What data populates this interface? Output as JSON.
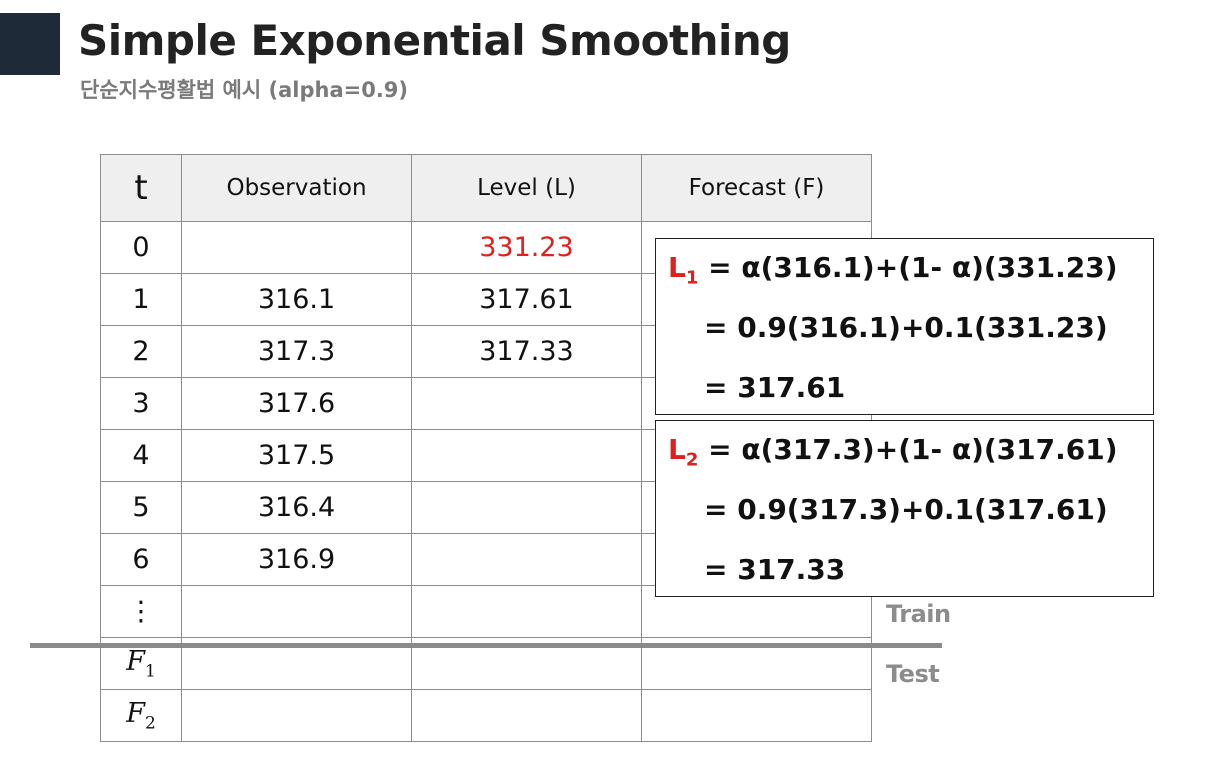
{
  "header": {
    "title": "Simple Exponential Smoothing",
    "subtitle": "단순지수평활법 예시 (alpha=0.9)"
  },
  "table": {
    "columns": [
      "t",
      "Observation",
      "Level (L)",
      "Forecast (F)"
    ],
    "rows": [
      {
        "t": "0",
        "observation": "",
        "level": "331.23",
        "forecast": ""
      },
      {
        "t": "1",
        "observation": "316.1",
        "level": "317.61",
        "forecast": ""
      },
      {
        "t": "2",
        "observation": "317.3",
        "level": "317.33",
        "forecast": ""
      },
      {
        "t": "3",
        "observation": "317.6",
        "level": "",
        "forecast": ""
      },
      {
        "t": "4",
        "observation": "317.5",
        "level": "",
        "forecast": ""
      },
      {
        "t": "5",
        "observation": "316.4",
        "level": "",
        "forecast": ""
      },
      {
        "t": "6",
        "observation": "316.9",
        "level": "",
        "forecast": ""
      },
      {
        "t": "⋮",
        "observation": "",
        "level": "",
        "forecast": ""
      }
    ],
    "test_rows": [
      {
        "symbol": "F",
        "sub": "1"
      },
      {
        "symbol": "F",
        "sub": "2"
      }
    ]
  },
  "labels": {
    "train": "Train",
    "test": "Test"
  },
  "calc1": {
    "symbol": "L",
    "sub": "1",
    "line1": " = α(316.1)+(1- α)(331.23)",
    "line2": "= 0.9(316.1)+0.1(331.23)",
    "line3": "= 317.61"
  },
  "calc2": {
    "symbol": "L",
    "sub": "2",
    "line1": " = α(317.3)+(1- α)(317.61)",
    "line2": "= 0.9(317.3)+0.1(317.61)",
    "line3": "= 317.33"
  },
  "colors": {
    "accent": "#1e2a38",
    "highlight": "#e0201c",
    "muted": "#8c8c8c"
  }
}
